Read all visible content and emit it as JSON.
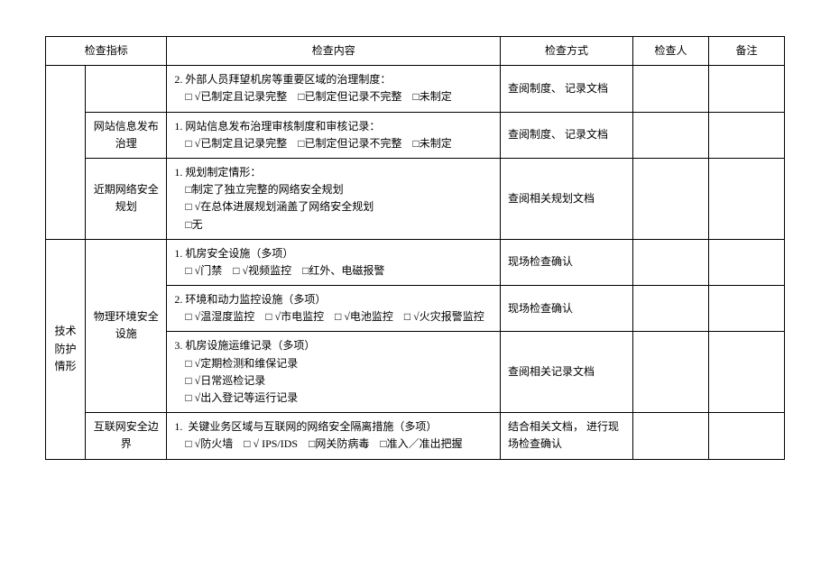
{
  "headers": {
    "indicator": "检查指标",
    "content": "检查内容",
    "method": "检查方式",
    "person": "检查人",
    "note": "备注"
  },
  "group1": {
    "label": "",
    "sub1": {
      "label": ""
    },
    "sub2": {
      "label": "网站信息发布治理"
    },
    "sub3": {
      "label": "近期网络安全规划"
    }
  },
  "group2": {
    "label": "技术防护情形",
    "sub1": {
      "label": "物理环境安全设施"
    },
    "sub2": {
      "label": "互联网安全边界"
    }
  },
  "rows": {
    "r1": {
      "content": "2. 外部人员拜望机房等重要区域的治理制度：\n　□ √已制定且记录完整　□已制定但记录不完整　□未制定",
      "method": "查阅制度、 记录文档"
    },
    "r2": {
      "content": "1. 网站信息发布治理审核制度和审核记录：\n　□ √已制定且记录完整　□已制定但记录不完整　□未制定",
      "method": "查阅制度、 记录文档"
    },
    "r3": {
      "content": "1. 规划制定情形：\n　□制定了独立完整的网络安全规划\n　□ √在总体进展规划涵盖了网络安全规划\n　□无",
      "method": "查阅相关规划文档"
    },
    "r4": {
      "content": "1. 机房安全设施（多项）\n　□ √门禁　□ √视频监控　□红外、电磁报警",
      "method": "现场检查确认"
    },
    "r5": {
      "content": "2. 环境和动力监控设施（多项）\n　□ √温湿度监控　□ √市电监控　□ √电池监控　□ √火灾报警监控",
      "method": "现场检查确认"
    },
    "r6": {
      "content": "3. 机房设施运维记录（多项）\n　□ √定期检测和维保记录\n　□ √日常巡检记录\n　□ √出入登记等运行记录",
      "method": "查阅相关记录文档"
    },
    "r7": {
      "content": "1.  关键业务区域与互联网的网络安全隔离措施（多项）\n　□ √防火墙　□ √ IPS/IDS　□网关防病毒　□准入／准出把握",
      "method": "结合相关文档， 进行现场检查确认"
    }
  }
}
